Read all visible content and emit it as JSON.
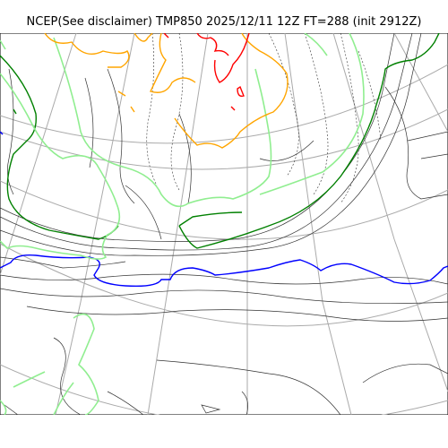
{
  "title": "NCEP(See disclaimer) TMP850 2025/12/11 12Z FT=288 (init 2912Z)",
  "colors": {
    "coastline": "#000000",
    "graticule": "#aaaaaa",
    "thin_isotherm": "#333333",
    "isotherm_green": "#008000",
    "isotherm_blue": "#0000ff",
    "isotherm_lightgreen": "#90ee90",
    "isotherm_orange": "#ffa500",
    "isotherm_red": "#ff0000"
  },
  "map": {
    "projection": "polar stereographic",
    "layers": [
      "graticule",
      "coastlines",
      "isotherms"
    ]
  }
}
